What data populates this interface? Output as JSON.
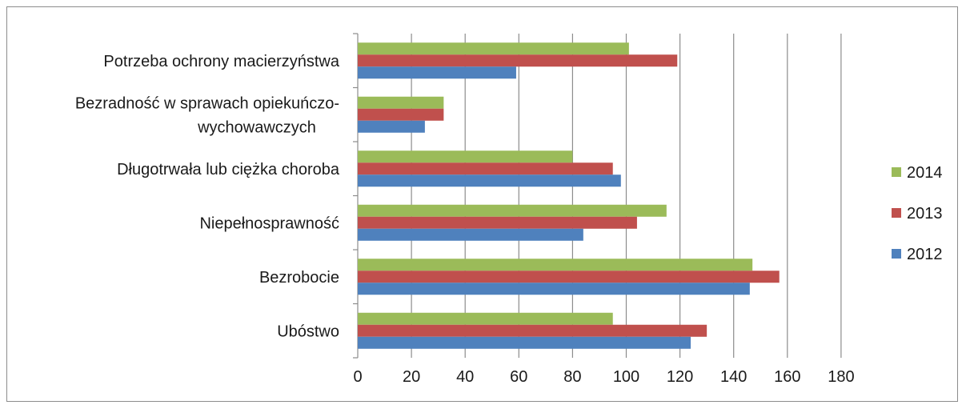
{
  "chart_data": {
    "type": "bar",
    "orientation": "horizontal",
    "categories": [
      "Potrzeba ochrony macierzyństwa",
      "Bezradność w sprawach opiekuńczo-wychowawczych",
      "Długotrwała lub ciężka choroba",
      "Niepełnosprawność",
      "Bezrobocie",
      "Ubóstwo"
    ],
    "category_lines": [
      [
        "Potrzeba ochrony macierzyństwa"
      ],
      [
        "Bezradność w sprawach opiekuńczo-",
        "wychowawczych"
      ],
      [
        "Długotrwała lub ciężka choroba"
      ],
      [
        "Niepełnosprawność"
      ],
      [
        "Bezrobocie"
      ],
      [
        "Ubóstwo"
      ]
    ],
    "series": [
      {
        "name": "2014",
        "color": "#9bbb59",
        "values": [
          101,
          32,
          80,
          115,
          147,
          95
        ]
      },
      {
        "name": "2013",
        "color": "#c0504d",
        "values": [
          119,
          32,
          95,
          104,
          157,
          130
        ]
      },
      {
        "name": "2012",
        "color": "#4f81bd",
        "values": [
          59,
          25,
          98,
          84,
          146,
          124
        ]
      }
    ],
    "xlim": [
      0,
      180
    ],
    "xticks": [
      "0",
      "20",
      "40",
      "60",
      "80",
      "100",
      "120",
      "140",
      "160",
      "180"
    ],
    "grid": true,
    "legend_position": "right",
    "title": "",
    "xlabel": "",
    "ylabel": ""
  }
}
